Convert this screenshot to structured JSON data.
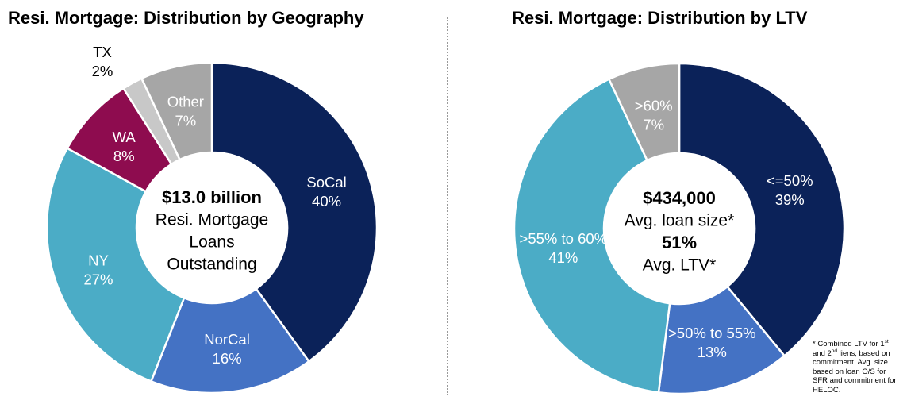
{
  "chart_data": [
    {
      "type": "pie",
      "title": "Resi. Mortgage: Distribution by Geography",
      "unit": "%",
      "slices": [
        {
          "label": "SoCal",
          "value": 40,
          "color": "#0b2259",
          "text_color": "#ffffff"
        },
        {
          "label": "NorCal",
          "value": 16,
          "color": "#4472c4",
          "text_color": "#ffffff"
        },
        {
          "label": "NY",
          "value": 27,
          "color": "#4bacc6",
          "text_color": "#ffffff"
        },
        {
          "label": "WA",
          "value": 8,
          "color": "#8e0c4f",
          "text_color": "#ffffff"
        },
        {
          "label": "TX",
          "value": 2,
          "color": "#c8c8c8",
          "text_color": "#000000"
        },
        {
          "label": "Other",
          "value": 7,
          "color": "#a6a6a6",
          "text_color": "#ffffff"
        }
      ],
      "center_lines": [
        "$13.0 billion",
        "Resi. Mortgage",
        "Loans",
        "Outstanding"
      ]
    },
    {
      "type": "pie",
      "title": "Resi. Mortgage: Distribution by LTV",
      "unit": "%",
      "slices": [
        {
          "label": "<=50%",
          "value": 39,
          "color": "#0b2259",
          "text_color": "#ffffff"
        },
        {
          "label": ">50% to 55%",
          "value": 13,
          "color": "#4472c4",
          "text_color": "#ffffff"
        },
        {
          "label": ">55% to 60%",
          "value": 41,
          "color": "#4bacc6",
          "text_color": "#ffffff"
        },
        {
          "label": ">60%",
          "value": 7,
          "color": "#a6a6a6",
          "text_color": "#ffffff"
        }
      ],
      "center_lines": [
        "$434,000",
        "Avg. loan size*",
        "51%",
        "Avg. LTV*"
      ]
    }
  ],
  "footnote": {
    "prefix": "* Combined LTV for 1",
    "sup1": "st",
    "mid": " and 2",
    "sup2": "nd",
    "suffix": " liens; based on commitment. Avg. size based on loan O/S for SFR and commitment for HELOC."
  }
}
